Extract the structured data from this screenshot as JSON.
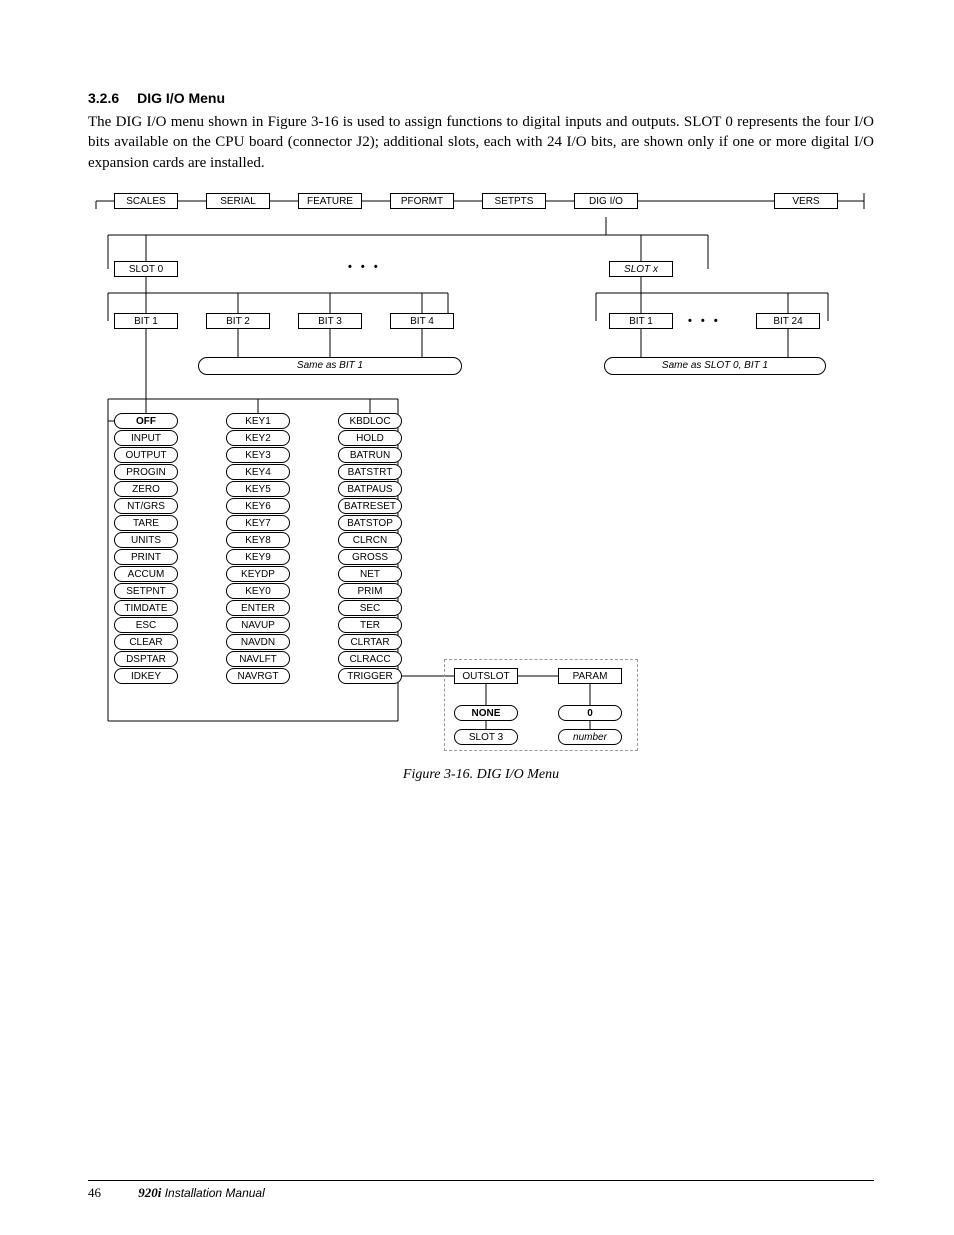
{
  "heading": {
    "number": "3.2.6",
    "title": "DIG I/O Menu"
  },
  "paragraph": "The DIG I/O menu shown in Figure 3-16 is used to assign functions to digital inputs and outputs. SLOT 0 represents the four I/O bits available on the CPU board (connector J2); additional slots, each with 24 I/O bits, are shown only if one or more digital I/O expansion cards are installed.",
  "top_row": [
    "SCALES",
    "SERIAL",
    "FEATURE",
    "PFORMT",
    "SETPTS",
    "DIG I/O",
    "VERS"
  ],
  "slots": {
    "slot0": "SLOT 0",
    "slotx": "SLOT x"
  },
  "bits_left": [
    "BIT 1",
    "BIT 2",
    "BIT 3",
    "BIT 4"
  ],
  "bits_right": [
    "BIT 1",
    "BIT 24"
  ],
  "notes": {
    "left": "Same as BIT 1",
    "right": "Same as SLOT 0, BIT 1"
  },
  "col1": [
    "OFF",
    "INPUT",
    "OUTPUT",
    "PROGIN",
    "ZERO",
    "NT/GRS",
    "TARE",
    "UNITS",
    "PRINT",
    "ACCUM",
    "SETPNT",
    "TIMDATE",
    "ESC",
    "CLEAR",
    "DSPTAR",
    "IDKEY"
  ],
  "col2": [
    "KEY1",
    "KEY2",
    "KEY3",
    "KEY4",
    "KEY5",
    "KEY6",
    "KEY7",
    "KEY8",
    "KEY9",
    "KEYDP",
    "KEY0",
    "ENTER",
    "NAVUP",
    "NAVDN",
    "NAVLFT",
    "NAVRGT"
  ],
  "col3": [
    "KBDLOC",
    "HOLD",
    "BATRUN",
    "BATSTRT",
    "BATPAUS",
    "BATRESET",
    "BATSTOP",
    "CLRCN",
    "GROSS",
    "NET",
    "PRIM",
    "SEC",
    "TER",
    "CLRTAR",
    "CLRACC",
    "TRIGGER"
  ],
  "trigger_menu": {
    "outslot": "OUTSLOT",
    "param": "PARAM",
    "none": "NONE",
    "zero": "0",
    "slot3": "SLOT 3",
    "number": "number"
  },
  "caption": "Figure 3-16. DIG I/O Menu",
  "footer": {
    "page": "46",
    "model": "920i",
    "manual": " Installation Manual"
  }
}
